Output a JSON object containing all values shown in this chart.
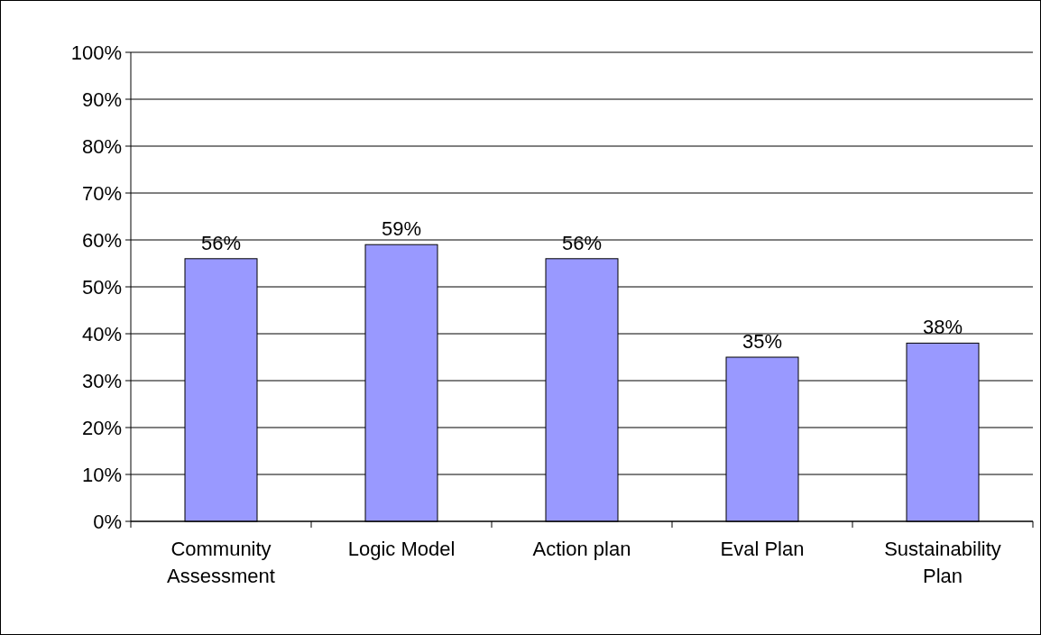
{
  "chart_data": {
    "type": "bar",
    "categories": [
      "Community Assessment",
      "Logic Model",
      "Action plan",
      "Eval Plan",
      "Sustainability Plan"
    ],
    "values": [
      56,
      59,
      56,
      35,
      38
    ],
    "value_labels": [
      "56%",
      "59%",
      "56%",
      "35%",
      "38%"
    ],
    "color": "#9999ff",
    "ylim": [
      0,
      100
    ],
    "yticks": [
      {
        "value": 0,
        "label": "0%"
      },
      {
        "value": 10,
        "label": "10%"
      },
      {
        "value": 20,
        "label": "20%"
      },
      {
        "value": 30,
        "label": "30%"
      },
      {
        "value": 40,
        "label": "40%"
      },
      {
        "value": 50,
        "label": "50%"
      },
      {
        "value": 60,
        "label": "60%"
      },
      {
        "value": 70,
        "label": "70%"
      },
      {
        "value": 80,
        "label": "80%"
      },
      {
        "value": 90,
        "label": "90%"
      },
      {
        "value": 100,
        "label": "100%"
      }
    ],
    "grid": "y"
  }
}
